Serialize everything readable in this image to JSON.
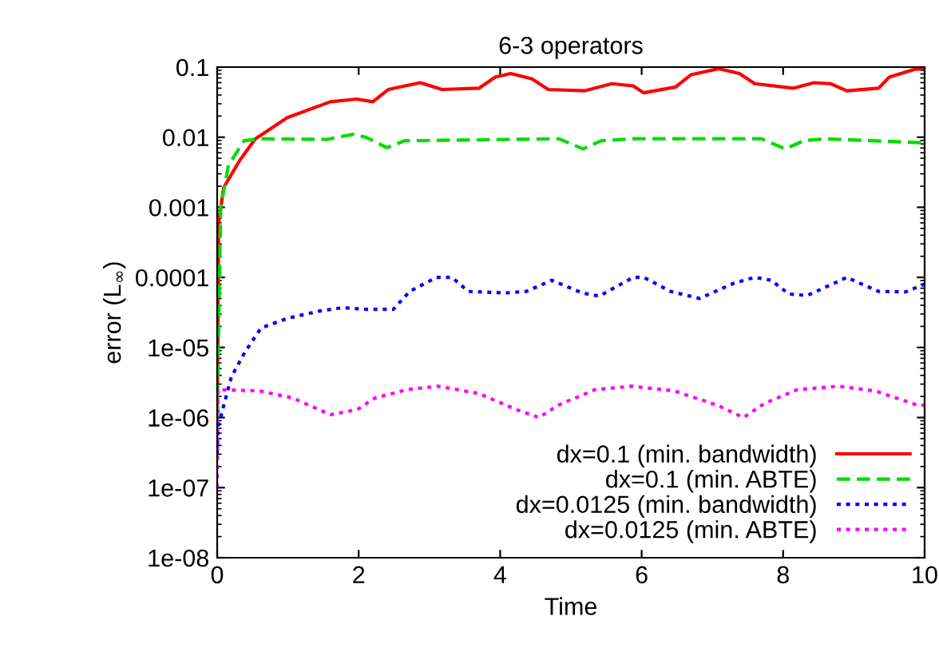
{
  "chart_data": {
    "type": "line",
    "title": "6-3 operators",
    "xlabel": "Time",
    "ylabel": "error (L$_{∞}$)",
    "log": "y",
    "grid": false,
    "legend": "bottom right",
    "xlim": [
      0,
      10
    ],
    "xticks": [
      0,
      2,
      4,
      6,
      8,
      10
    ],
    "ylim": [
      1e-08,
      0.1
    ],
    "yticks": [
      {
        "value": 1e-08,
        "label": "1e-08"
      },
      {
        "value": 1e-07,
        "label": "1e-07"
      },
      {
        "value": 1e-06,
        "label": "1e-06"
      },
      {
        "value": 1e-05,
        "label": "1e-05"
      },
      {
        "value": 0.0001,
        "label": "0.0001"
      },
      {
        "value": 0.001,
        "label": "0.001"
      },
      {
        "value": 0.01,
        "label": "0.01"
      },
      {
        "value": 0.1,
        "label": "0.1"
      }
    ],
    "series": [
      {
        "name": "dx=0.1 (min. bandwidth)",
        "color": "#ff0000",
        "line_style": "solid",
        "x": [
          0,
          0.02,
          0.09,
          0.32,
          0.54,
          0.99,
          1.6,
          1.97,
          2.2,
          2.42,
          2.87,
          3.18,
          3.7,
          3.93,
          4.15,
          4.45,
          4.68,
          5.2,
          5.58,
          5.88,
          6.03,
          6.48,
          6.7,
          7.09,
          7.38,
          7.6,
          8.14,
          8.44,
          8.67,
          8.9,
          9.35,
          9.5,
          9.86,
          10
        ],
        "values": [
          1e-06,
          0.00058,
          0.0019,
          0.0047,
          0.0095,
          0.019,
          0.032,
          0.035,
          0.032,
          0.048,
          0.06,
          0.048,
          0.05,
          0.072,
          0.081,
          0.068,
          0.048,
          0.046,
          0.058,
          0.054,
          0.043,
          0.052,
          0.078,
          0.095,
          0.081,
          0.058,
          0.05,
          0.06,
          0.058,
          0.046,
          0.05,
          0.072,
          0.093,
          0.095
        ]
      },
      {
        "name": "dx=0.1 (min. ABTE)",
        "color": "#00dd00",
        "line_style": "dashed",
        "x": [
          0,
          0.05,
          0.16,
          0.38,
          0.6,
          1.55,
          1.92,
          2.1,
          2.4,
          2.65,
          4.83,
          5.17,
          5.43,
          5.88,
          7.69,
          8.03,
          8.29,
          8.59,
          10
        ],
        "values": [
          1e-06,
          0.001,
          0.004,
          0.0089,
          0.0095,
          0.0093,
          0.011,
          0.01,
          0.0071,
          0.0089,
          0.0095,
          0.0068,
          0.0089,
          0.0095,
          0.0095,
          0.0068,
          0.0089,
          0.0095,
          0.0083
        ]
      },
      {
        "name": "dx=0.0125 (min. bandwidth)",
        "color": "#0000ff",
        "line_style": "dotted",
        "x": [
          0,
          0.01,
          0.2,
          0.39,
          0.62,
          0.99,
          1.44,
          1.78,
          2.1,
          2.49,
          2.72,
          3.1,
          3.32,
          3.55,
          4.08,
          4.37,
          4.73,
          5.16,
          5.4,
          5.88,
          6.03,
          6.41,
          6.82,
          7.31,
          7.6,
          7.83,
          8.08,
          8.34,
          8.9,
          9.35,
          9.73,
          10
        ],
        "values": [
          3e-07,
          7.2e-07,
          3.8e-06,
          8.5e-06,
          1.9e-05,
          2.6e-05,
          3.3e-05,
          3.7e-05,
          3.5e-05,
          3.5e-05,
          6.3e-05,
          0.0001,
          0.0001,
          6.3e-05,
          6e-05,
          6.3e-05,
          9.1e-05,
          6e-05,
          5.4e-05,
          0.0001,
          0.0001,
          6.3e-05,
          5e-05,
          8.3e-05,
          0.0001,
          9.1e-05,
          5.8e-05,
          5.5e-05,
          0.0001,
          6.3e-05,
          6.2e-05,
          8e-05
        ]
      },
      {
        "name": "dx=0.0125 (min. ABTE)",
        "color": "#ff00ff",
        "line_style": "dotted",
        "x": [
          0,
          0.01,
          0.6,
          1.07,
          1.6,
          1.98,
          2.23,
          2.68,
          3.12,
          3.7,
          4.23,
          4.55,
          4.82,
          5.34,
          5.86,
          6.46,
          7.07,
          7.44,
          7.74,
          8.2,
          8.78,
          9.3,
          9.9,
          10
        ],
        "values": [
          1e-07,
          2.5e-06,
          2.4e-06,
          1.9e-06,
          1.1e-06,
          1.3e-06,
          1.9e-06,
          2.5e-06,
          2.8e-06,
          2.2e-06,
          1.3e-06,
          1e-06,
          1.5e-06,
          2.5e-06,
          2.8e-06,
          2.4e-06,
          1.5e-06,
          1e-06,
          1.6e-06,
          2.5e-06,
          2.8e-06,
          2.4e-06,
          1.5e-06,
          1.5e-06
        ]
      }
    ]
  }
}
